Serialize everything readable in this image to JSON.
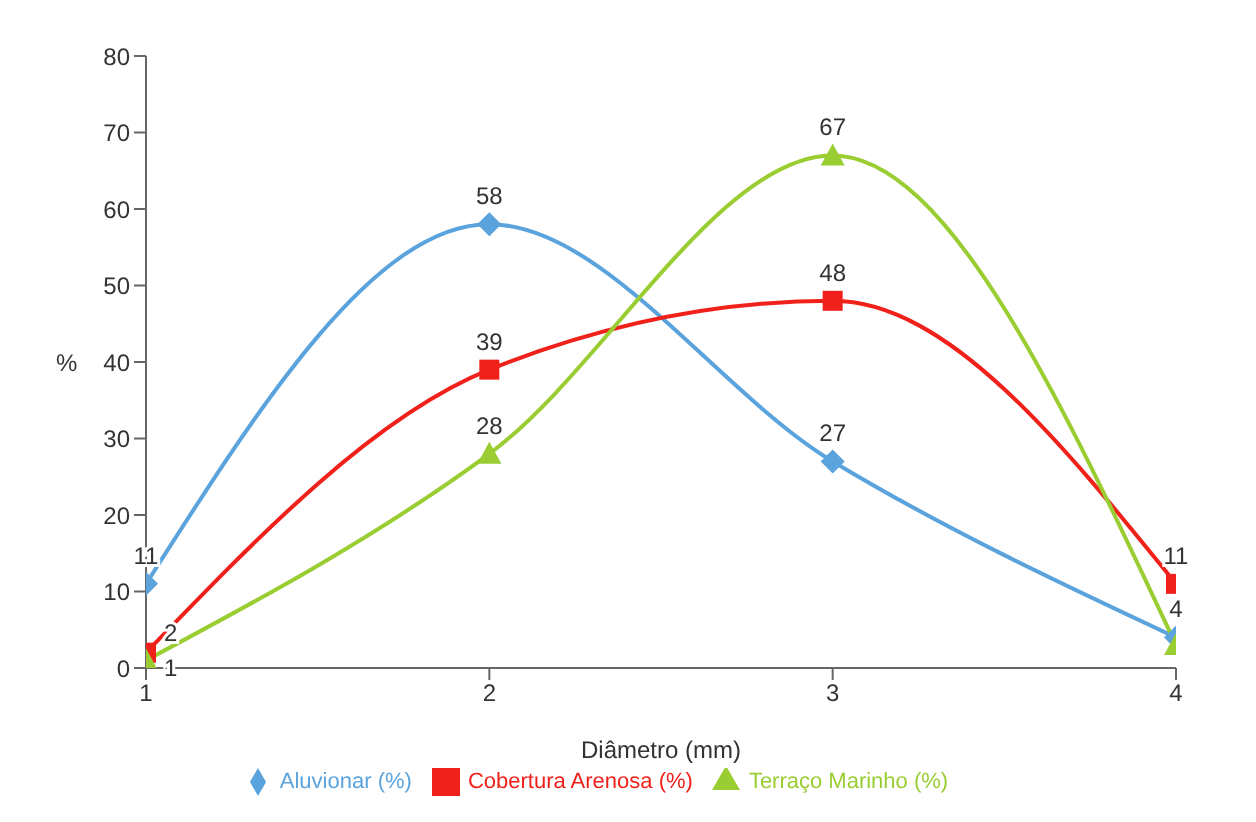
{
  "chart_data": {
    "type": "line",
    "xlabel": "Diâmetro (mm)",
    "ylabel": "%",
    "x": [
      1,
      2,
      3,
      4
    ],
    "xlim": [
      1,
      4
    ],
    "xticks": [
      1,
      2,
      3,
      4
    ],
    "ylim": [
      0,
      80
    ],
    "yticks": [
      0,
      10,
      20,
      30,
      40,
      50,
      60,
      70,
      80
    ],
    "grid": false,
    "legend": "bottom",
    "series": [
      {
        "name": "Aluvionar (%)",
        "color": "#5ba3dc",
        "marker": "diamond",
        "values": [
          11,
          58,
          27,
          4
        ],
        "value_labels": [
          "11",
          "58",
          "27",
          "4"
        ]
      },
      {
        "name": "Cobertura Arenosa (%)",
        "color": "#f0201a",
        "marker": "square",
        "values": [
          2,
          39,
          48,
          11
        ],
        "value_labels": [
          "2",
          "39",
          "48",
          "11"
        ]
      },
      {
        "name": "Terraço Marinho (%)",
        "color": "#9acd32",
        "marker": "triangle",
        "values": [
          1,
          28,
          67,
          3
        ],
        "value_labels": [
          "1",
          "28",
          "67",
          null
        ]
      }
    ]
  }
}
